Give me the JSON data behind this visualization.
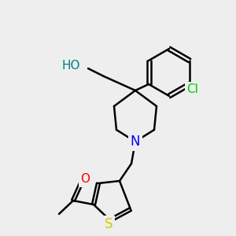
{
  "bg_color": "#eeeeee",
  "atom_colors": {
    "O": "#ff0000",
    "N": "#0000ff",
    "S": "#cccc00",
    "Cl": "#00cc00",
    "C": "#000000",
    "H": "#008080"
  },
  "bond_color": "#000000",
  "bond_width": 1.8,
  "font_size_atom": 11
}
